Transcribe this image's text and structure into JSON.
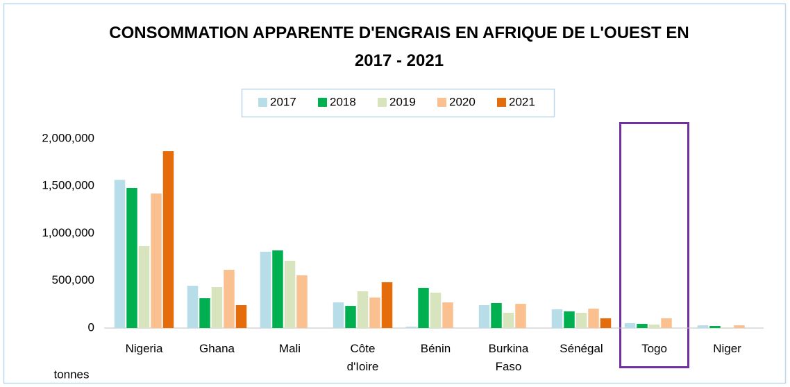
{
  "chart_data": {
    "type": "bar",
    "title": "CONSOMMATION APPARENTE D'ENGRAIS EN AFRIQUE DE L'OUEST EN 2017 - 2021",
    "y_label": "tonnes",
    "categories": [
      "Nigeria",
      "Ghana",
      "Mali",
      "Côte\nd'Ioire",
      "Bénin",
      "Burkina\nFaso",
      "Sénégal",
      "Togo",
      "Niger"
    ],
    "series": [
      {
        "name": "2017",
        "color": "#b7dee8",
        "values": [
          1565000,
          447000,
          806000,
          271000,
          15000,
          242000,
          198000,
          51000,
          29000
        ]
      },
      {
        "name": "2018",
        "color": "#00b050",
        "values": [
          1480000,
          315000,
          820000,
          234000,
          425000,
          264000,
          176000,
          44000,
          22000
        ]
      },
      {
        "name": "2019",
        "color": "#d7e4bd",
        "values": [
          865000,
          432000,
          711000,
          388000,
          374000,
          161000,
          161000,
          37000,
          7000
        ]
      },
      {
        "name": "2020",
        "color": "#fac090",
        "values": [
          1421000,
          615000,
          557000,
          322000,
          271000,
          256000,
          205000,
          103000,
          29000
        ]
      },
      {
        "name": "2021",
        "color": "#e46c0a",
        "values": [
          1868000,
          242000,
          null,
          484000,
          null,
          null,
          103000,
          null,
          null
        ]
      }
    ],
    "ylim": [
      0,
      2000000
    ],
    "yticks": [
      0,
      {
        "value": 500000,
        "label": "500,000"
      },
      {
        "value": 1000000,
        "label": "1,000,000"
      },
      {
        "value": 1500000,
        "label": "1,500,000"
      },
      {
        "value": 2000000,
        "label": "2,000,000"
      }
    ],
    "grid": false
  }
}
